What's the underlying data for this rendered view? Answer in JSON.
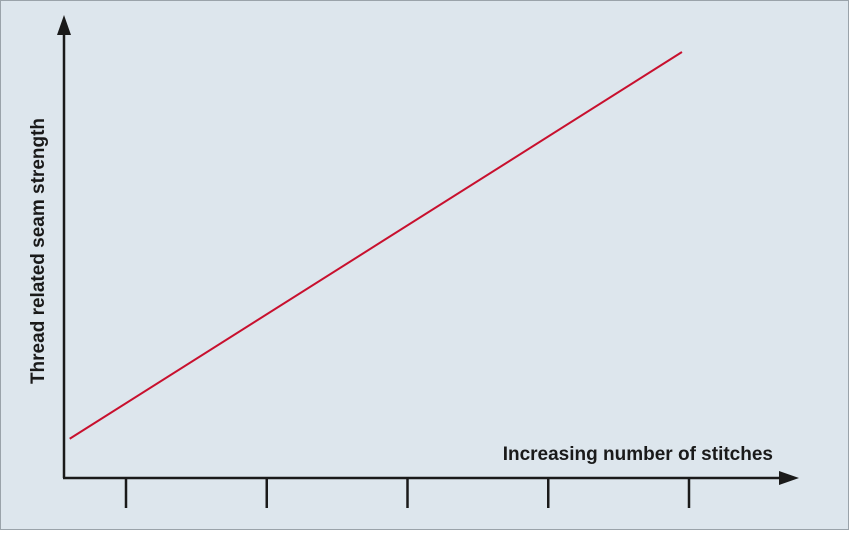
{
  "chart_data": {
    "type": "line",
    "title": "",
    "xlabel": "Increasing number of stitches",
    "ylabel": "Thread related seam strength",
    "x_ticks": [
      1,
      2,
      3,
      4,
      5
    ],
    "x_tick_labels": [
      "",
      "",
      "",
      "",
      ""
    ],
    "xlim": [
      0.75,
      5.75
    ],
    "ylim": [
      0,
      1
    ],
    "series": [
      {
        "values_x": [
          0.6,
          4.95
        ],
        "values_y": [
          0.09,
          1.0
        ],
        "color": "#c8102e"
      }
    ],
    "grid": false,
    "legend": "none",
    "background_color": "#dde6ed",
    "axis_color": "#1a1a1a"
  }
}
